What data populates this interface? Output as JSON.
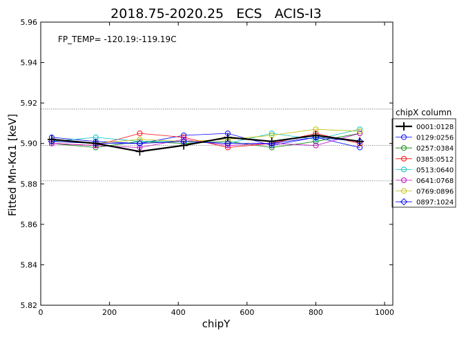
{
  "chart_data": {
    "type": "line",
    "title": "2018.75-2020.25   ECS   ACIS-I3",
    "xlabel": "chipY",
    "ylabel": "Fitted Mn-Kα1 [keV]",
    "xlim": [
      0,
      1024
    ],
    "ylim": [
      5.82,
      5.96
    ],
    "xticks": [
      0,
      200,
      400,
      600,
      800,
      1000
    ],
    "yticks": [
      5.82,
      5.84,
      5.86,
      5.88,
      5.9,
      5.92,
      5.94,
      5.96
    ],
    "xtick_labels": [
      "0",
      "200",
      "400",
      "600",
      "800",
      "1000"
    ],
    "ytick_labels": [
      "5.82",
      "5.84",
      "5.86",
      "5.88",
      "5.90",
      "5.92",
      "5.94",
      "5.96"
    ],
    "reference_lines": [
      5.917,
      5.899,
      5.8815
    ],
    "annotation": "FP_TEMP= -120.19:-119.19C",
    "legend_title": "chipX column",
    "legend_position": "outside-right",
    "grid": false,
    "x": [
      32,
      160,
      288,
      416,
      544,
      672,
      800,
      928
    ],
    "series": [
      {
        "name": "0001:0128",
        "color": "#000000",
        "marker": "plus",
        "values": [
          5.902,
          5.9,
          5.896,
          5.899,
          5.903,
          5.901,
          5.904,
          5.901
        ]
      },
      {
        "name": "0129:0256",
        "color": "#0000ff",
        "marker": "circle",
        "values": [
          5.903,
          5.901,
          5.9,
          5.904,
          5.905,
          5.899,
          5.903,
          5.898
        ]
      },
      {
        "name": "0257:0384",
        "color": "#008000",
        "marker": "circle",
        "values": [
          5.9,
          5.898,
          5.901,
          5.9,
          5.901,
          5.898,
          5.901,
          5.905
        ]
      },
      {
        "name": "0385:0512",
        "color": "#ff0000",
        "marker": "circle",
        "values": [
          5.9,
          5.899,
          5.905,
          5.903,
          5.898,
          5.9,
          5.905,
          5.9
        ]
      },
      {
        "name": "0513:0640",
        "color": "#00bfbf",
        "marker": "circle",
        "values": [
          5.901,
          5.903,
          5.901,
          5.901,
          5.9,
          5.905,
          5.902,
          5.907
        ]
      },
      {
        "name": "0641:0768",
        "color": "#bf00bf",
        "marker": "circle",
        "values": [
          5.9,
          5.899,
          5.898,
          5.902,
          5.899,
          5.9,
          5.899,
          5.905
        ]
      },
      {
        "name": "0769:0896",
        "color": "#bfbf00",
        "marker": "circle",
        "values": [
          5.901,
          5.9,
          5.902,
          5.901,
          5.902,
          5.904,
          5.907,
          5.906
        ]
      },
      {
        "name": "0897:1024",
        "color": "#0000ff",
        "marker": "diamond",
        "values": [
          5.901,
          5.9,
          5.9,
          5.901,
          5.9,
          5.9,
          5.903,
          5.901
        ]
      }
    ]
  }
}
